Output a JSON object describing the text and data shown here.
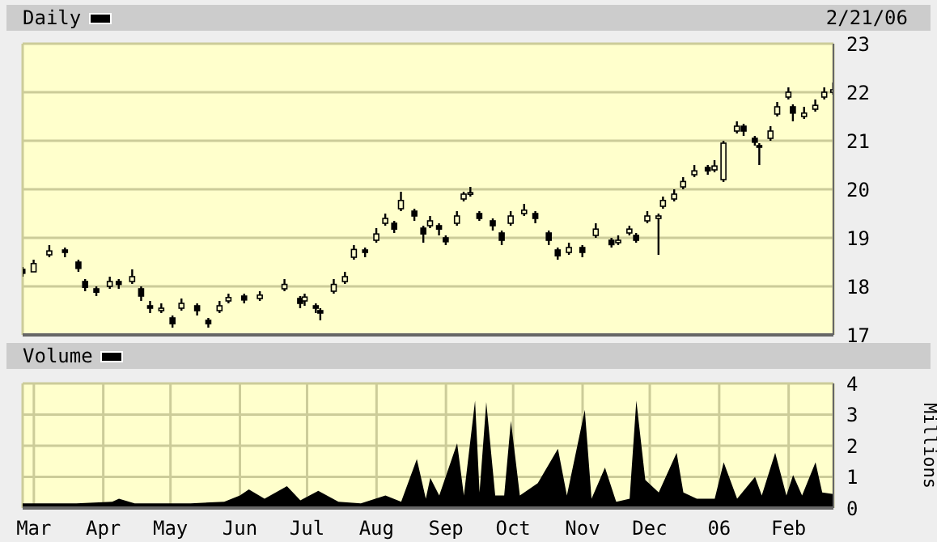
{
  "chart_data": [
    {
      "type": "candlestick",
      "title": "Daily",
      "color": "#000000",
      "annotations": [
        "2/21/06"
      ],
      "x": [
        "2005-02-24",
        "2005-03-01",
        "2005-03-08",
        "2005-03-15",
        "2005-03-21",
        "2005-03-24",
        "2005-03-29",
        "2005-04-04",
        "2005-04-08",
        "2005-04-14",
        "2005-04-18",
        "2005-04-22",
        "2005-04-27",
        "2005-05-02",
        "2005-05-06",
        "2005-05-13",
        "2005-05-18",
        "2005-05-23",
        "2005-05-27",
        "2005-06-03",
        "2005-06-10",
        "2005-06-21",
        "2005-06-28",
        "2005-06-30",
        "2005-07-05",
        "2005-07-07",
        "2005-07-13",
        "2005-07-18",
        "2005-07-22",
        "2005-07-27",
        "2005-08-01",
        "2005-08-05",
        "2005-08-09",
        "2005-08-12",
        "2005-08-18",
        "2005-08-22",
        "2005-08-25",
        "2005-08-29",
        "2005-09-01",
        "2005-09-06",
        "2005-09-09",
        "2005-09-12",
        "2005-09-16",
        "2005-09-22",
        "2005-09-26",
        "2005-09-30",
        "2005-10-06",
        "2005-10-11",
        "2005-10-17",
        "2005-10-21",
        "2005-10-26",
        "2005-11-01",
        "2005-11-07",
        "2005-11-14",
        "2005-11-17",
        "2005-11-22",
        "2005-11-25",
        "2005-11-30",
        "2005-12-05",
        "2005-12-07",
        "2005-12-12",
        "2005-12-16",
        "2005-12-21",
        "2005-12-27",
        "2005-12-30",
        "2006-01-03",
        "2006-01-09",
        "2006-01-12",
        "2006-01-17",
        "2006-01-19",
        "2006-01-24",
        "2006-01-27",
        "2006-02-01",
        "2006-02-03",
        "2006-02-08",
        "2006-02-13",
        "2006-02-17",
        "2006-02-21"
      ],
      "ohlc": [
        [
          18.35,
          18.4,
          18.2,
          18.27
        ],
        [
          18.3,
          18.55,
          18.3,
          18.47
        ],
        [
          18.65,
          18.85,
          18.6,
          18.73
        ],
        [
          18.75,
          18.8,
          18.6,
          18.7
        ],
        [
          18.5,
          18.55,
          18.3,
          18.37
        ],
        [
          18.1,
          18.15,
          17.9,
          17.98
        ],
        [
          17.95,
          18.0,
          17.8,
          17.88
        ],
        [
          18.0,
          18.2,
          17.95,
          18.1
        ],
        [
          18.1,
          18.15,
          17.95,
          18.04
        ],
        [
          18.1,
          18.35,
          18.05,
          18.2
        ],
        [
          17.95,
          18.0,
          17.7,
          17.8
        ],
        [
          17.6,
          17.7,
          17.45,
          17.55
        ],
        [
          17.5,
          17.65,
          17.45,
          17.55
        ],
        [
          17.35,
          17.4,
          17.15,
          17.23
        ],
        [
          17.55,
          17.75,
          17.5,
          17.65
        ],
        [
          17.6,
          17.65,
          17.4,
          17.5
        ],
        [
          17.3,
          17.35,
          17.15,
          17.23
        ],
        [
          17.5,
          17.7,
          17.45,
          17.6
        ],
        [
          17.7,
          17.85,
          17.65,
          17.77
        ],
        [
          17.8,
          17.85,
          17.65,
          17.72
        ],
        [
          17.75,
          17.9,
          17.7,
          17.82
        ],
        [
          17.95,
          18.15,
          17.9,
          18.04
        ],
        [
          17.75,
          17.8,
          17.55,
          17.65
        ],
        [
          17.7,
          17.85,
          17.6,
          17.78
        ],
        [
          17.6,
          17.65,
          17.45,
          17.55
        ],
        [
          17.5,
          17.55,
          17.3,
          17.45
        ],
        [
          17.9,
          18.15,
          17.85,
          18.04
        ],
        [
          18.1,
          18.3,
          18.05,
          18.2
        ],
        [
          18.6,
          18.85,
          18.55,
          18.76
        ],
        [
          18.75,
          18.8,
          18.6,
          18.7
        ],
        [
          18.95,
          19.2,
          18.9,
          19.08
        ],
        [
          19.3,
          19.5,
          19.25,
          19.4
        ],
        [
          19.3,
          19.35,
          19.1,
          19.18
        ],
        [
          19.6,
          19.95,
          19.55,
          19.77
        ],
        [
          19.55,
          19.6,
          19.35,
          19.45
        ],
        [
          19.2,
          19.25,
          18.9,
          19.08
        ],
        [
          19.25,
          19.45,
          19.2,
          19.35
        ],
        [
          19.25,
          19.3,
          19.05,
          19.18
        ],
        [
          19.0,
          19.05,
          18.85,
          18.92
        ],
        [
          19.3,
          19.55,
          19.25,
          19.45
        ],
        [
          19.8,
          19.95,
          19.75,
          19.9
        ],
        [
          19.9,
          20.05,
          19.85,
          19.93
        ],
        [
          19.5,
          19.55,
          19.35,
          19.4
        ],
        [
          19.35,
          19.4,
          19.15,
          19.25
        ],
        [
          19.1,
          19.15,
          18.85,
          18.95
        ],
        [
          19.3,
          19.55,
          19.25,
          19.45
        ],
        [
          19.5,
          19.7,
          19.45,
          19.57
        ],
        [
          19.5,
          19.55,
          19.3,
          19.4
        ],
        [
          19.1,
          19.15,
          18.85,
          18.95
        ],
        [
          18.75,
          18.8,
          18.55,
          18.63
        ],
        [
          18.7,
          18.9,
          18.65,
          18.8
        ],
        [
          18.8,
          18.85,
          18.6,
          18.7
        ],
        [
          19.05,
          19.3,
          19.0,
          19.18
        ],
        [
          18.95,
          19.0,
          18.8,
          18.86
        ],
        [
          18.9,
          19.05,
          18.85,
          18.95
        ],
        [
          19.1,
          19.25,
          19.05,
          19.18
        ],
        [
          19.05,
          19.1,
          18.9,
          18.95
        ],
        [
          19.35,
          19.55,
          19.3,
          19.45
        ],
        [
          19.4,
          19.5,
          18.65,
          19.45
        ],
        [
          19.65,
          19.85,
          19.6,
          19.77
        ],
        [
          19.8,
          20.0,
          19.75,
          19.9
        ],
        [
          20.05,
          20.25,
          20.0,
          20.16
        ],
        [
          20.3,
          20.5,
          20.25,
          20.38
        ],
        [
          20.45,
          20.5,
          20.3,
          20.38
        ],
        [
          20.4,
          20.6,
          20.35,
          20.48
        ],
        [
          20.2,
          21.0,
          20.15,
          20.95
        ],
        [
          21.2,
          21.4,
          21.15,
          21.3
        ],
        [
          21.3,
          21.35,
          21.1,
          21.2
        ],
        [
          21.05,
          21.1,
          20.9,
          20.97
        ],
        [
          20.9,
          20.95,
          20.5,
          20.87
        ],
        [
          21.05,
          21.3,
          21.0,
          21.2
        ],
        [
          21.55,
          21.8,
          21.5,
          21.7
        ],
        [
          21.9,
          22.1,
          21.85,
          22.0
        ],
        [
          21.7,
          21.75,
          21.4,
          21.57
        ],
        [
          21.5,
          21.7,
          21.45,
          21.57
        ],
        [
          21.65,
          21.85,
          21.6,
          21.73
        ],
        [
          21.9,
          22.1,
          21.85,
          22.0
        ],
        [
          22.0,
          22.2,
          21.95,
          22.05
        ]
      ],
      "xlim": [
        "2005-02-24",
        "2006-02-21"
      ],
      "xticks": [
        {
          "value": "2005-03-01",
          "label": null
        },
        {
          "value": "2005-04-01",
          "label": null
        },
        {
          "value": "2005-05-01",
          "label": null
        },
        {
          "value": "2005-06-01",
          "label": null
        },
        {
          "value": "2005-07-01",
          "label": null
        },
        {
          "value": "2005-08-01",
          "label": null
        },
        {
          "value": "2005-09-01",
          "label": null
        },
        {
          "value": "2005-10-01",
          "label": null
        },
        {
          "value": "2005-11-01",
          "label": null
        },
        {
          "value": "2005-12-01",
          "label": null
        },
        {
          "value": "2006-01-01",
          "label": null
        },
        {
          "value": "2006-02-01",
          "label": null
        }
      ],
      "ylim": [
        17,
        23
      ],
      "yticks": [
        17,
        18,
        19,
        20,
        21,
        22,
        23
      ],
      "grid": true,
      "tick_labels": "y"
    },
    {
      "type": "area",
      "title": "Volume",
      "ylabel": "Millions",
      "color": "#000000",
      "x": [
        "2005-02-24",
        "2005-03-20",
        "2005-04-05",
        "2005-04-08",
        "2005-04-15",
        "2005-05-10",
        "2005-05-25",
        "2005-06-01",
        "2005-06-05",
        "2005-06-12",
        "2005-06-22",
        "2005-06-28",
        "2005-07-06",
        "2005-07-15",
        "2005-07-25",
        "2005-08-05",
        "2005-08-12",
        "2005-08-19",
        "2005-08-23",
        "2005-08-25",
        "2005-08-29",
        "2005-09-06",
        "2005-09-09",
        "2005-09-14",
        "2005-09-16",
        "2005-09-19",
        "2005-09-23",
        "2005-09-27",
        "2005-09-30",
        "2005-10-04",
        "2005-10-12",
        "2005-10-21",
        "2005-10-25",
        "2005-11-02",
        "2005-11-05",
        "2005-11-11",
        "2005-11-16",
        "2005-11-22",
        "2005-11-25",
        "2005-11-29",
        "2005-12-05",
        "2005-12-13",
        "2005-12-16",
        "2005-12-22",
        "2005-12-30",
        "2006-01-03",
        "2006-01-09",
        "2006-01-17",
        "2006-01-20",
        "2006-01-26",
        "2006-01-31",
        "2006-02-03",
        "2006-02-07",
        "2006-02-13",
        "2006-02-16",
        "2006-02-21"
      ],
      "values": [
        0.15,
        0.15,
        0.2,
        0.3,
        0.15,
        0.15,
        0.2,
        0.4,
        0.6,
        0.3,
        0.7,
        0.25,
        0.55,
        0.2,
        0.15,
        0.4,
        0.2,
        1.57,
        0.3,
        0.97,
        0.4,
        2.08,
        0.4,
        3.45,
        0.5,
        3.4,
        0.4,
        0.4,
        2.8,
        0.4,
        0.8,
        1.9,
        0.4,
        3.15,
        0.3,
        1.3,
        0.2,
        0.3,
        3.45,
        0.9,
        0.5,
        1.77,
        0.5,
        0.3,
        0.3,
        1.47,
        0.3,
        1.0,
        0.4,
        1.77,
        0.4,
        1.06,
        0.4,
        1.47,
        0.5,
        0.45
      ],
      "xlim": [
        "2005-02-24",
        "2006-02-21"
      ],
      "xticks": [
        {
          "value": "2005-03-01",
          "label": "Mar"
        },
        {
          "value": "2005-04-01",
          "label": "Apr"
        },
        {
          "value": "2005-05-01",
          "label": "May"
        },
        {
          "value": "2005-06-01",
          "label": "Jun"
        },
        {
          "value": "2005-07-01",
          "label": "Jul"
        },
        {
          "value": "2005-08-01",
          "label": "Aug"
        },
        {
          "value": "2005-09-01",
          "label": "Sep"
        },
        {
          "value": "2005-10-01",
          "label": "Oct"
        },
        {
          "value": "2005-11-01",
          "label": "Nov"
        },
        {
          "value": "2005-12-01",
          "label": "Dec"
        },
        {
          "value": "2006-01-01",
          "label": "06"
        },
        {
          "value": "2006-02-01",
          "label": "Feb"
        }
      ],
      "ylim": [
        0,
        4
      ],
      "yticks": [
        0,
        1,
        2,
        3,
        4
      ],
      "grid": true
    }
  ]
}
